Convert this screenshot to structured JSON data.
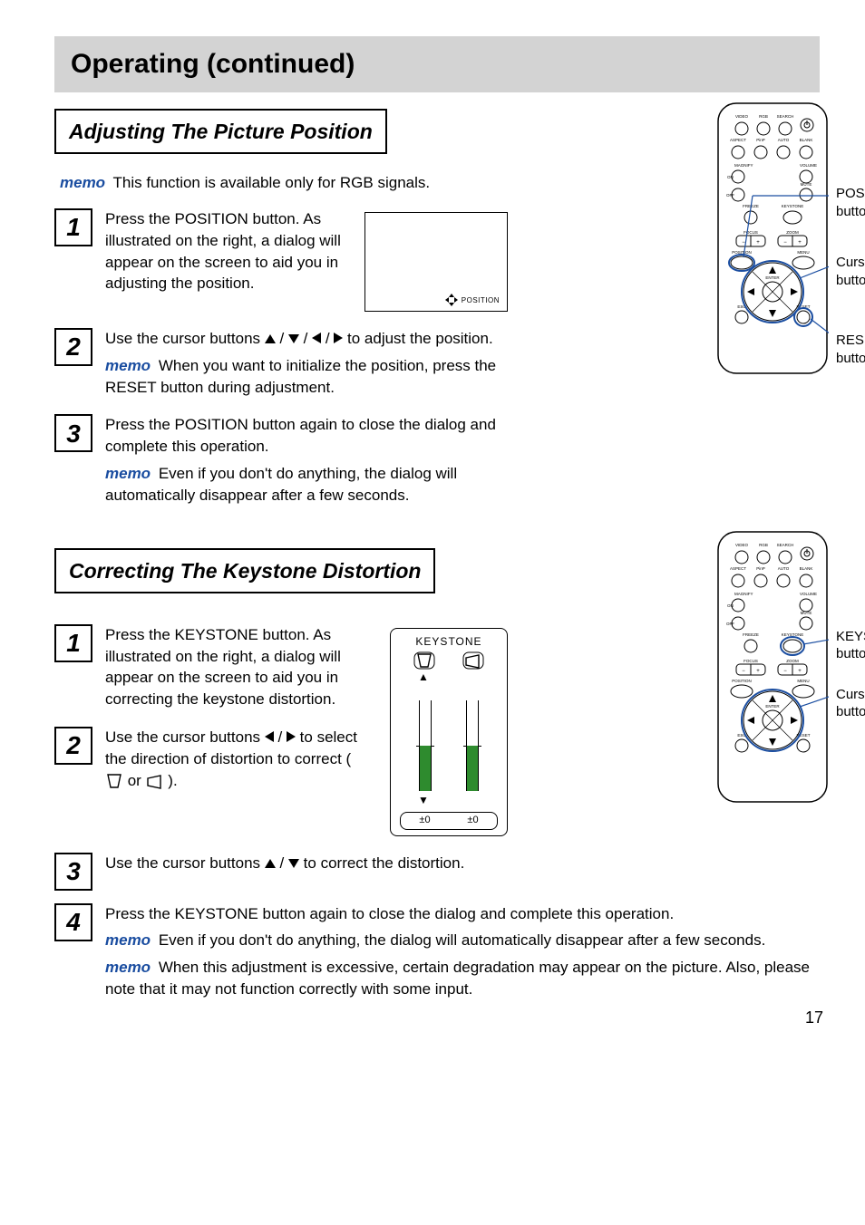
{
  "heading": "Operating (continued)",
  "page_number": "17",
  "memo_label": "memo",
  "colors": {
    "memo_blue": "#1a4da0",
    "bar_green": "#2e8b2e",
    "heading_bg": "#d3d3d3"
  },
  "sectionA": {
    "title": "Adjusting The Picture Position",
    "intro": "This function is available only for RGB signals.",
    "position_dialog_label": "POSITION",
    "steps": [
      {
        "num": "1",
        "text": "Press the POSITION button. As illustrated on the right, a dialog will appear on the screen to aid you in adjusting the position."
      },
      {
        "num": "2",
        "text_before": "Use the cursor buttons ",
        "text_after": " to adjust the position.",
        "memo": "When you want to initialize the position, press the RESET button during adjustment."
      },
      {
        "num": "3",
        "text": "Press the POSITION button again to close the dialog and complete this operation.",
        "memo": "Even if you don't do anything, the dialog will automatically disappear after a few seconds."
      }
    ],
    "callouts": {
      "position": "POSITION button",
      "cursor": "Cursor buttons",
      "reset": "RESET button"
    }
  },
  "sectionB": {
    "title": "Correcting The Keystone Distortion",
    "keystone_dialog": {
      "title": "KEYSTONE",
      "left_value": "±0",
      "right_value": "±0",
      "left_fill_pct": 50,
      "right_fill_pct": 50
    },
    "steps": [
      {
        "num": "1",
        "text": "Press the KEYSTONE button. As illustrated on the right, a dialog will appear on the screen to aid you in correcting the keystone distortion."
      },
      {
        "num": "2",
        "text_before": "Use the cursor buttons ",
        "text_mid": " to select the direction of distortion to correct (",
        "text_after": ")."
      },
      {
        "num": "3",
        "text_before": "Use the cursor buttons ",
        "text_after": " to correct the distortion."
      },
      {
        "num": "4",
        "text": "Press the KEYSTONE button again to close the dialog and complete this operation.",
        "memo1": "Even if you don't do anything, the dialog will automatically disappear after a few seconds.",
        "memo2": "When this adjustment is excessive, certain degradation may appear on the picture. Also, please note that it may not function correctly with some input."
      }
    ],
    "callouts": {
      "keystone": "KEYSTONE button",
      "cursor": "Cursor buttons"
    }
  },
  "remote_labels": {
    "row1": [
      "VIDEO",
      "RGB",
      "SEARCH"
    ],
    "row2": [
      "ASPECT",
      "PinP",
      "AUTO",
      "BLANK"
    ],
    "magnify": "MAGNIFY",
    "on": "ON",
    "off": "OFF",
    "volume": "VOLUME",
    "mute": "MUTE",
    "freeze": "FREEZE",
    "keystone": "KEYSTONE",
    "focus": "FOCUS",
    "zoom": "ZOOM",
    "position": "POSITION",
    "menu": "MENU",
    "enter": "ENTER",
    "esc": "ESC",
    "reset": "RESET"
  }
}
